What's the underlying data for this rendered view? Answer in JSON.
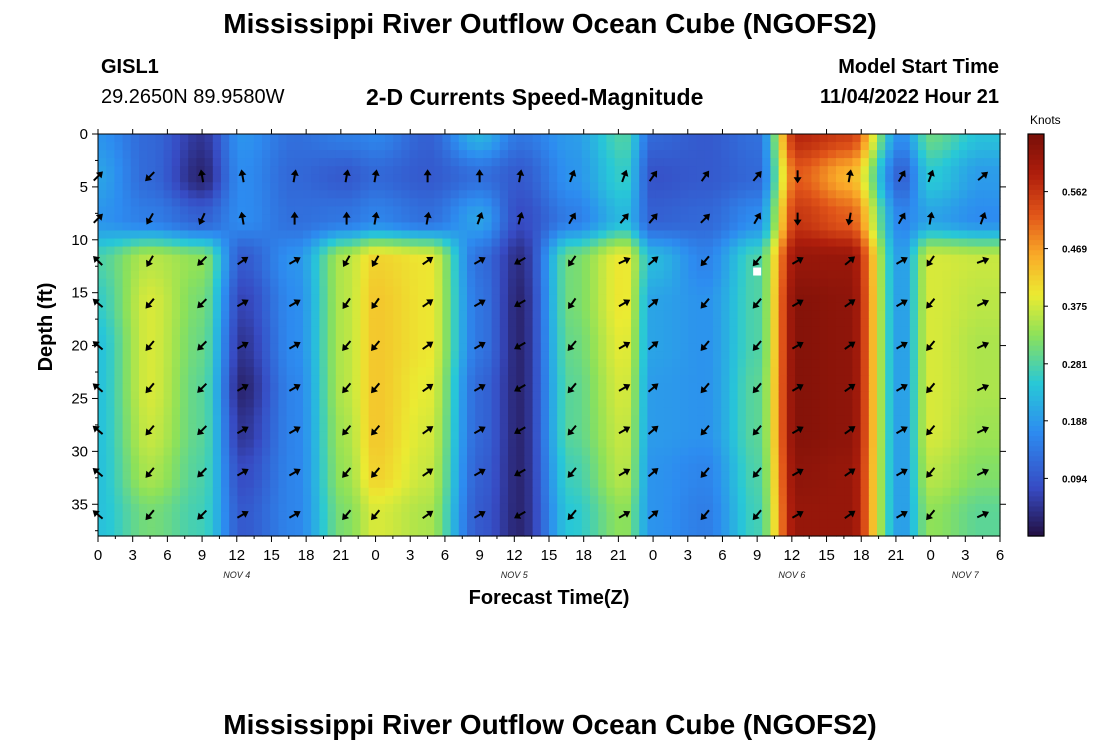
{
  "header": {
    "title": "Mississippi River Outflow Ocean Cube (NGOFS2)",
    "station": "GISL1",
    "coords": "29.2650N  89.9580W",
    "subtitle": "2-D Currents Speed-Magnitude",
    "model_start_label": "Model Start Time",
    "model_start_value": "11/04/2022 Hour 21"
  },
  "footer": {
    "title": "Mississippi River Outflow Ocean Cube (NGOFS2)"
  },
  "colors": {
    "arrow": "#000000",
    "marker": "#ffffff"
  },
  "chart_data": {
    "type": "heatmap",
    "title": "2-D Currents Speed-Magnitude",
    "xlabel": "Forecast Time(Z)",
    "ylabel": "Depth (ft)",
    "x_unit": "forecast hours from 00Z Nov 4",
    "xlim": [
      0,
      78
    ],
    "ylim": [
      38,
      0
    ],
    "x_tick_values": [
      0,
      3,
      6,
      9,
      12,
      15,
      18,
      21,
      24,
      27,
      30,
      33,
      36,
      39,
      42,
      45,
      48,
      51,
      54,
      57,
      60,
      63,
      66,
      69,
      72,
      75,
      78
    ],
    "x_tick_labels": [
      "0",
      "3",
      "6",
      "9",
      "12",
      "15",
      "18",
      "21",
      "0",
      "3",
      "6",
      "9",
      "12",
      "15",
      "18",
      "21",
      "0",
      "3",
      "6",
      "9",
      "12",
      "15",
      "18",
      "21",
      "0",
      "3",
      "6"
    ],
    "y_tick_values": [
      0,
      5,
      10,
      15,
      20,
      25,
      30,
      35
    ],
    "y_tick_labels": [
      "0",
      "5",
      "10",
      "15",
      "20",
      "25",
      "30",
      "35"
    ],
    "date_labels": [
      {
        "text": "NOV 4",
        "x": 12
      },
      {
        "text": "NOV 5",
        "x": 36
      },
      {
        "text": "NOV 6",
        "x": 60
      },
      {
        "text": "NOV 7",
        "x": 75
      }
    ],
    "colorbar": {
      "title": "Knots",
      "min": 0.0,
      "max": 0.656,
      "tick_values": [
        0.094,
        0.188,
        0.281,
        0.375,
        0.469,
        0.562
      ],
      "tick_labels": [
        "0.094",
        "0.188",
        "0.281",
        "0.375",
        "0.469",
        "0.562"
      ],
      "colormap": "jet"
    },
    "depths": [
      0,
      4,
      8,
      12,
      16,
      20,
      24,
      28,
      32,
      36
    ],
    "times": [
      0,
      4.5,
      9,
      12.5,
      17,
      21.5,
      24,
      28.5,
      33,
      36.5,
      41,
      45.5,
      48,
      52.5,
      57,
      60.5,
      65,
      69.5,
      72,
      76.5
    ],
    "speed": [
      [
        0.18,
        0.12,
        0.05,
        0.18,
        0.13,
        0.15,
        0.16,
        0.11,
        0.22,
        0.14,
        0.19,
        0.28,
        0.12,
        0.1,
        0.13,
        0.58,
        0.55,
        0.17,
        0.3,
        0.24
      ],
      [
        0.2,
        0.12,
        0.03,
        0.17,
        0.12,
        0.1,
        0.12,
        0.1,
        0.13,
        0.1,
        0.18,
        0.26,
        0.09,
        0.1,
        0.12,
        0.52,
        0.45,
        0.11,
        0.25,
        0.19
      ],
      [
        0.18,
        0.15,
        0.11,
        0.17,
        0.13,
        0.14,
        0.16,
        0.13,
        0.2,
        0.08,
        0.15,
        0.23,
        0.11,
        0.12,
        0.17,
        0.56,
        0.52,
        0.16,
        0.2,
        0.17
      ],
      [
        0.28,
        0.36,
        0.33,
        0.1,
        0.18,
        0.36,
        0.42,
        0.4,
        0.13,
        0.04,
        0.31,
        0.4,
        0.23,
        0.16,
        0.28,
        0.62,
        0.62,
        0.19,
        0.38,
        0.37
      ],
      [
        0.26,
        0.38,
        0.31,
        0.07,
        0.17,
        0.36,
        0.43,
        0.4,
        0.14,
        0.03,
        0.31,
        0.4,
        0.2,
        0.18,
        0.28,
        0.64,
        0.63,
        0.19,
        0.38,
        0.36
      ],
      [
        0.24,
        0.38,
        0.3,
        0.05,
        0.17,
        0.36,
        0.43,
        0.4,
        0.14,
        0.03,
        0.3,
        0.39,
        0.2,
        0.18,
        0.28,
        0.64,
        0.63,
        0.19,
        0.38,
        0.35
      ],
      [
        0.24,
        0.38,
        0.29,
        0.03,
        0.16,
        0.36,
        0.43,
        0.39,
        0.12,
        0.03,
        0.29,
        0.38,
        0.19,
        0.18,
        0.29,
        0.64,
        0.63,
        0.19,
        0.38,
        0.35
      ],
      [
        0.24,
        0.37,
        0.29,
        0.05,
        0.16,
        0.35,
        0.43,
        0.38,
        0.12,
        0.03,
        0.29,
        0.37,
        0.19,
        0.18,
        0.29,
        0.64,
        0.63,
        0.19,
        0.38,
        0.34
      ],
      [
        0.24,
        0.35,
        0.28,
        0.08,
        0.16,
        0.34,
        0.42,
        0.37,
        0.11,
        0.03,
        0.27,
        0.36,
        0.18,
        0.16,
        0.28,
        0.63,
        0.62,
        0.19,
        0.36,
        0.32
      ],
      [
        0.24,
        0.31,
        0.27,
        0.1,
        0.16,
        0.32,
        0.38,
        0.35,
        0.1,
        0.03,
        0.25,
        0.33,
        0.18,
        0.15,
        0.27,
        0.62,
        0.62,
        0.19,
        0.33,
        0.29
      ]
    ],
    "arrow_times": [
      0,
      4.5,
      9,
      12.5,
      17,
      21.5,
      24,
      28.5,
      33,
      36.5,
      41,
      45.5,
      48,
      52.5,
      57,
      60.5,
      65,
      69.5,
      72,
      76.5
    ],
    "arrow_depths": [
      4,
      8,
      12,
      16,
      20,
      24,
      28,
      32,
      36
    ],
    "arrow_bearings": [
      [
        -45,
        135,
        -100,
        -100,
        -80,
        -80,
        -80,
        -90,
        -90,
        -80,
        -70,
        -70,
        -55,
        -55,
        -50,
        90,
        -80,
        -60,
        -70,
        -40
      ],
      [
        -45,
        120,
        115,
        -100,
        -90,
        -90,
        -80,
        -80,
        -70,
        -75,
        -60,
        -50,
        -50,
        -45,
        -60,
        90,
        100,
        -60,
        -80,
        -70
      ],
      [
        -135,
        120,
        135,
        -35,
        -30,
        120,
        120,
        -35,
        -30,
        150,
        125,
        -25,
        -40,
        130,
        130,
        -30,
        -40,
        -30,
        125,
        -20
      ],
      [
        -140,
        130,
        135,
        -30,
        -30,
        125,
        125,
        -35,
        -30,
        150,
        125,
        -30,
        -40,
        130,
        130,
        -30,
        -35,
        -30,
        130,
        -25
      ],
      [
        -140,
        130,
        135,
        -30,
        -30,
        130,
        130,
        -35,
        -30,
        150,
        130,
        -30,
        -40,
        130,
        130,
        -30,
        -35,
        -30,
        130,
        -25
      ],
      [
        -140,
        130,
        135,
        -30,
        -30,
        130,
        130,
        -35,
        -30,
        150,
        130,
        -30,
        -40,
        130,
        130,
        -30,
        -35,
        -30,
        130,
        -25
      ],
      [
        -140,
        130,
        135,
        -30,
        -30,
        130,
        130,
        -35,
        -30,
        150,
        130,
        -30,
        -40,
        130,
        130,
        -30,
        -35,
        -30,
        130,
        -25
      ],
      [
        -140,
        130,
        135,
        -30,
        -30,
        130,
        130,
        -35,
        -30,
        150,
        130,
        -30,
        -40,
        130,
        130,
        -30,
        -35,
        -30,
        130,
        -25
      ],
      [
        -140,
        130,
        135,
        -30,
        -30,
        130,
        130,
        -35,
        -30,
        150,
        130,
        -30,
        -40,
        130,
        130,
        -30,
        -35,
        -30,
        130,
        -25
      ]
    ],
    "station_marker": {
      "x": 57,
      "y": 13
    }
  }
}
